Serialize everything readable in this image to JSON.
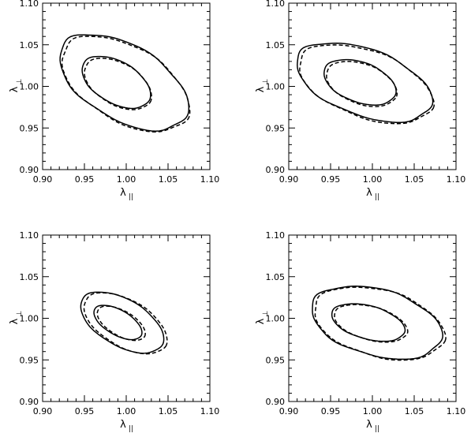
{
  "chart_data": [
    {
      "type": "line",
      "xlabel": "λ",
      "xlabel_sub": "||",
      "ylabel": "λ",
      "ylabel_sub": "⊥",
      "xlim": [
        0.9,
        1.1
      ],
      "ylim": [
        0.9,
        1.1
      ],
      "xticks": [
        "0.90",
        "0.95",
        "1.00",
        "1.05",
        "1.10"
      ],
      "yticks": [
        "0.90",
        "0.95",
        "1.00",
        "1.05",
        "1.10"
      ],
      "grid": false,
      "series": [
        {
          "style": "solid",
          "contours": [
            {
              "cx": 0.997,
              "cy": 1.005,
              "a": 0.085,
              "b": 0.045,
              "angle": -30,
              "wobble": 0.02
            },
            {
              "cx": 0.988,
              "cy": 1.005,
              "a": 0.045,
              "b": 0.025,
              "angle": -30,
              "wobble": 0.01
            }
          ]
        },
        {
          "style": "dashed",
          "contours": [
            {
              "cx": 0.999,
              "cy": 1.003,
              "a": 0.084,
              "b": 0.045,
              "angle": -30,
              "wobble": 0.02
            },
            {
              "cx": 0.99,
              "cy": 1.003,
              "a": 0.044,
              "b": 0.025,
              "angle": -30,
              "wobble": 0.01
            }
          ]
        }
      ]
    },
    {
      "type": "line",
      "xlabel": "λ",
      "xlabel_sub": "||",
      "ylabel": "λ",
      "ylabel_sub": "⊥",
      "xlim": [
        0.9,
        1.1
      ],
      "ylim": [
        0.9,
        1.1
      ],
      "xticks": [
        "0.90",
        "0.95",
        "1.00",
        "1.05",
        "1.10"
      ],
      "yticks": [
        "0.90",
        "0.95",
        "1.00",
        "1.05",
        "1.10"
      ],
      "grid": false,
      "series": [
        {
          "style": "solid",
          "contours": [
            {
              "cx": 0.99,
              "cy": 1.005,
              "a": 0.085,
              "b": 0.04,
              "angle": -20,
              "wobble": 0.02
            },
            {
              "cx": 0.985,
              "cy": 1.005,
              "a": 0.045,
              "b": 0.024,
              "angle": -20,
              "wobble": 0.01
            }
          ]
        },
        {
          "style": "dashed",
          "contours": [
            {
              "cx": 0.992,
              "cy": 1.003,
              "a": 0.084,
              "b": 0.04,
              "angle": -20,
              "wobble": 0.02
            },
            {
              "cx": 0.987,
              "cy": 1.003,
              "a": 0.044,
              "b": 0.024,
              "angle": -20,
              "wobble": 0.01
            }
          ]
        }
      ]
    },
    {
      "type": "line",
      "xlabel": "λ",
      "xlabel_sub": "||",
      "ylabel": "λ",
      "ylabel_sub": "⊥",
      "xlim": [
        0.9,
        1.1
      ],
      "ylim": [
        0.9,
        1.1
      ],
      "xticks": [
        "0.90",
        "0.95",
        "1.00",
        "1.05",
        "1.10"
      ],
      "yticks": [
        "0.90",
        "0.95",
        "1.00",
        "1.05",
        "1.10"
      ],
      "grid": false,
      "series": [
        {
          "style": "solid",
          "contours": [
            {
              "cx": 0.995,
              "cy": 0.995,
              "a": 0.055,
              "b": 0.028,
              "angle": -30,
              "wobble": 0.01
            },
            {
              "cx": 0.99,
              "cy": 0.995,
              "a": 0.032,
              "b": 0.015,
              "angle": -30,
              "wobble": 0.005
            }
          ]
        },
        {
          "style": "dashed",
          "contours": [
            {
              "cx": 0.999,
              "cy": 0.994,
              "a": 0.055,
              "b": 0.028,
              "angle": -30,
              "wobble": 0.01
            },
            {
              "cx": 0.994,
              "cy": 0.994,
              "a": 0.032,
              "b": 0.015,
              "angle": -30,
              "wobble": 0.005
            }
          ]
        }
      ]
    },
    {
      "type": "line",
      "xlabel": "λ",
      "xlabel_sub": "||",
      "ylabel": "λ",
      "ylabel_sub": "⊥",
      "xlim": [
        0.9,
        1.1
      ],
      "ylim": [
        0.9,
        1.1
      ],
      "xticks": [
        "0.90",
        "0.95",
        "1.00",
        "1.05",
        "1.10"
      ],
      "yticks": [
        "0.90",
        "0.95",
        "1.00",
        "1.05",
        "1.10"
      ],
      "grid": false,
      "series": [
        {
          "style": "solid",
          "contours": [
            {
              "cx": 1.005,
              "cy": 0.995,
              "a": 0.08,
              "b": 0.04,
              "angle": -15,
              "wobble": 0.02
            },
            {
              "cx": 0.995,
              "cy": 0.995,
              "a": 0.045,
              "b": 0.02,
              "angle": -15,
              "wobble": 0.01
            }
          ]
        },
        {
          "style": "dashed",
          "contours": [
            {
              "cx": 1.008,
              "cy": 0.994,
              "a": 0.08,
              "b": 0.04,
              "angle": -15,
              "wobble": 0.02
            },
            {
              "cx": 0.998,
              "cy": 0.994,
              "a": 0.045,
              "b": 0.02,
              "angle": -15,
              "wobble": 0.01
            }
          ]
        }
      ]
    }
  ]
}
